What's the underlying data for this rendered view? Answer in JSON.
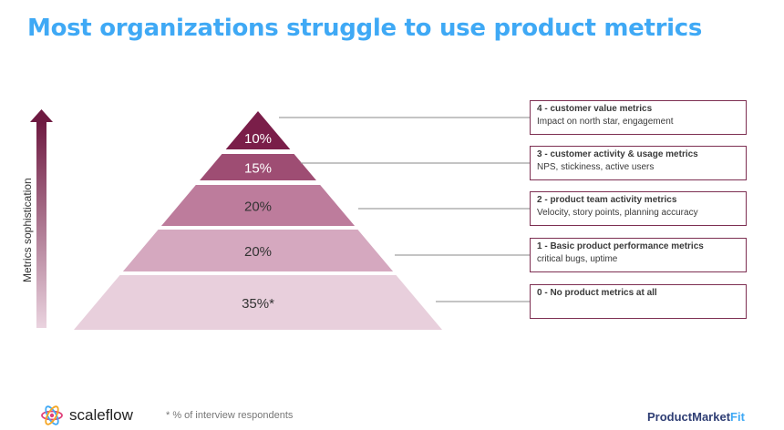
{
  "title": "Most organizations struggle to use product metrics",
  "axis_label": "Metrics sophistication",
  "tiers": [
    {
      "pct": "10%",
      "heading": "4 - customer value metrics",
      "sub": "Impact on north star, engagement",
      "color": "#7a1e49"
    },
    {
      "pct": "15%",
      "heading": "3 - customer activity & usage metrics",
      "sub": "NPS, stickiness, active users",
      "color": "#9e4d73"
    },
    {
      "pct": "20%",
      "heading": "2 - product team activity metrics",
      "sub": "Velocity, story points, planning accuracy",
      "color": "#bd7c9c"
    },
    {
      "pct": "20%",
      "heading": "1 - Basic product performance metrics",
      "sub": "critical bugs, uptime",
      "color": "#d5a8bf"
    },
    {
      "pct": "35%*",
      "heading": "0 - No product metrics at all",
      "sub": "",
      "color": "#e8cfdc"
    }
  ],
  "footer": {
    "logo_name": "scaleflow",
    "footnote": "* % of interview respondents",
    "brand_part1": "ProductMarket",
    "brand_part2": "Fit"
  }
}
